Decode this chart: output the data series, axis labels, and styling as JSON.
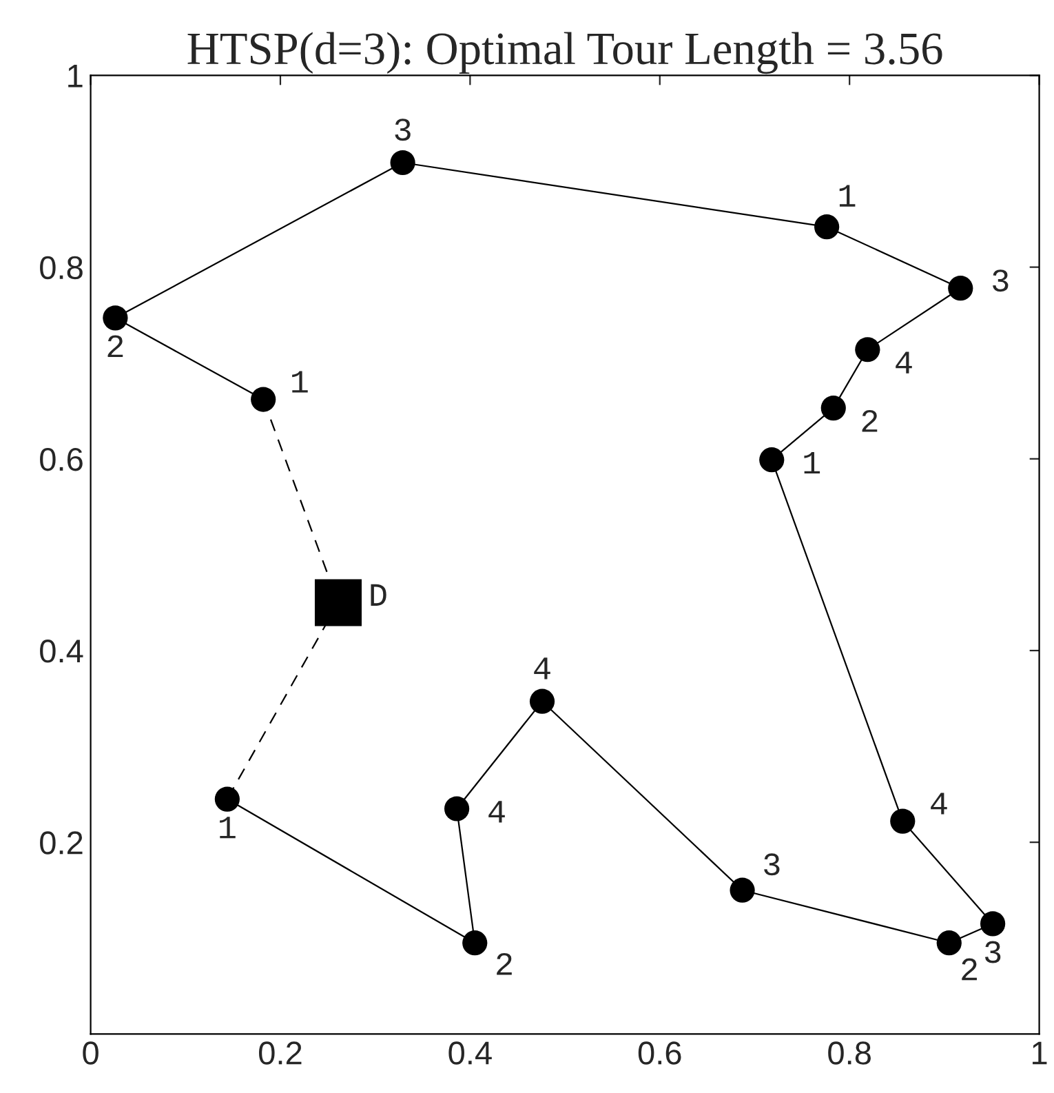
{
  "chart_data": {
    "type": "scatter",
    "title": "HTSP(d=3): Optimal Tour Length = 3.56",
    "xlim": [
      0,
      1
    ],
    "ylim": [
      0,
      1
    ],
    "xticks": [
      0,
      0.2,
      0.4,
      0.6,
      0.8,
      1
    ],
    "yticks": [
      0.2,
      0.4,
      0.6,
      0.8,
      1
    ],
    "grid": false,
    "legend": false,
    "series": [
      {
        "type": "line",
        "color": "#000000",
        "line_style": "solid",
        "marker": "none",
        "x": [
          0.182,
          0.026,
          0.329,
          0.776,
          0.917,
          0.819,
          0.783,
          0.718,
          0.856,
          0.951,
          0.905,
          0.687,
          0.476,
          0.386,
          0.405,
          0.144
        ],
        "values": [
          0.662,
          0.747,
          0.909,
          0.842,
          0.778,
          0.714,
          0.653,
          0.599,
          0.222,
          0.115,
          0.095,
          0.15,
          0.347,
          0.235,
          0.095,
          0.245
        ]
      },
      {
        "type": "line",
        "color": "#000000",
        "line_style": "dashed",
        "marker": "none",
        "x": [
          0.182,
          0.261,
          0.144
        ],
        "values": [
          0.662,
          0.45,
          0.245
        ]
      },
      {
        "color": "#000000",
        "marker": "circle",
        "x": [
          0.182,
          0.026,
          0.329,
          0.776,
          0.917,
          0.819,
          0.783,
          0.718,
          0.856,
          0.951,
          0.905,
          0.687,
          0.476,
          0.386,
          0.405,
          0.144
        ],
        "values": [
          0.662,
          0.747,
          0.909,
          0.842,
          0.778,
          0.714,
          0.653,
          0.599,
          0.222,
          0.115,
          0.095,
          0.15,
          0.347,
          0.235,
          0.095,
          0.245
        ]
      },
      {
        "color": "#000000",
        "marker": "square",
        "x": [
          0.261
        ],
        "values": [
          0.45
        ]
      }
    ],
    "annotations": [
      {
        "text": "1",
        "x": 0.182,
        "y": 0.662
      },
      {
        "text": "2",
        "x": 0.026,
        "y": 0.747
      },
      {
        "text": "3",
        "x": 0.329,
        "y": 0.909
      },
      {
        "text": "1",
        "x": 0.776,
        "y": 0.842
      },
      {
        "text": "3",
        "x": 0.917,
        "y": 0.778
      },
      {
        "text": "4",
        "x": 0.819,
        "y": 0.714
      },
      {
        "text": "2",
        "x": 0.783,
        "y": 0.653
      },
      {
        "text": "1",
        "x": 0.718,
        "y": 0.599
      },
      {
        "text": "4",
        "x": 0.856,
        "y": 0.222
      },
      {
        "text": "3",
        "x": 0.951,
        "y": 0.115
      },
      {
        "text": "2",
        "x": 0.905,
        "y": 0.095
      },
      {
        "text": "3",
        "x": 0.687,
        "y": 0.15
      },
      {
        "text": "4",
        "x": 0.476,
        "y": 0.347
      },
      {
        "text": "4",
        "x": 0.386,
        "y": 0.235
      },
      {
        "text": "2",
        "x": 0.405,
        "y": 0.095
      },
      {
        "text": "1",
        "x": 0.144,
        "y": 0.245
      },
      {
        "text": "D",
        "x": 0.261,
        "y": 0.45
      }
    ]
  }
}
